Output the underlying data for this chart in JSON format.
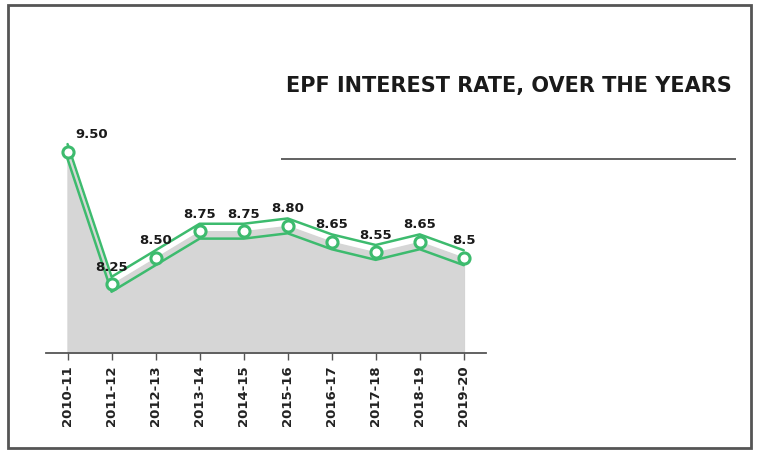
{
  "categories": [
    "2010-11",
    "2011-12",
    "2012-13",
    "2013-14",
    "2014-15",
    "2015-16",
    "2016-17",
    "2017-18",
    "2018-19",
    "2019-20"
  ],
  "values": [
    9.5,
    8.25,
    8.5,
    8.75,
    8.75,
    8.8,
    8.65,
    8.55,
    8.65,
    8.5
  ],
  "labels": [
    "9.50",
    "8.25",
    "8.50",
    "8.75",
    "8.75",
    "8.80",
    "8.65",
    "8.55",
    "8.65",
    "8.5"
  ],
  "title": "EPF INTEREST RATE, OVER THE YEARS",
  "line_color": "#3dbb6e",
  "fill_color": "#d6d6d6",
  "marker_face": "#ffffff",
  "background_color": "#ffffff",
  "border_color": "#555555",
  "ylim_min": 7.6,
  "ylim_max": 10.5,
  "title_fontsize": 15,
  "label_fontsize": 9.5,
  "tick_fontsize": 9.5
}
